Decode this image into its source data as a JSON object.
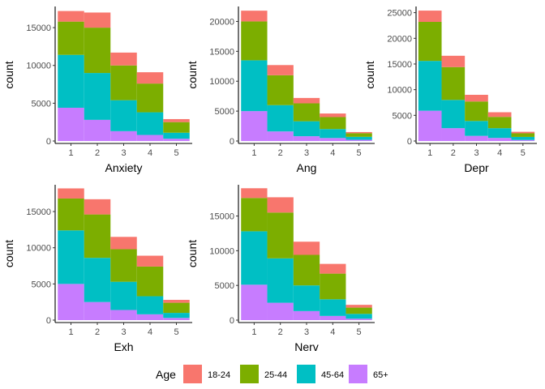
{
  "chart_data": {
    "type": "bar",
    "stacked": true,
    "categories": [
      1,
      2,
      3,
      4,
      5
    ],
    "ylabel": "count",
    "legend": {
      "title": "Age",
      "position": "bottom",
      "entries": [
        "18-24",
        "25-44",
        "45-64",
        "65+"
      ],
      "colors": [
        "#F8766D",
        "#7CAE00",
        "#00BFC4",
        "#C77CFF"
      ]
    },
    "facets": [
      {
        "xlabel": "Anxiety",
        "ylim": [
          0,
          17800
        ],
        "yticks": [
          0,
          5000,
          10000,
          15000
        ],
        "series": [
          {
            "name": "65+",
            "values": [
              4400,
              2800,
              1300,
              800,
              300
            ]
          },
          {
            "name": "45-64",
            "values": [
              7000,
              6200,
              4100,
              3000,
              800
            ]
          },
          {
            "name": "25-44",
            "values": [
              4400,
              6000,
              4600,
              3800,
              1400
            ]
          },
          {
            "name": "18-24",
            "values": [
              1400,
              2000,
              1700,
              1500,
              400
            ]
          }
        ]
      },
      {
        "xlabel": "Ang",
        "ylim": [
          0,
          22500
        ],
        "yticks": [
          0,
          5000,
          10000,
          15000,
          20000
        ],
        "series": [
          {
            "name": "65+",
            "values": [
              5000,
              1600,
              800,
              500,
              200
            ]
          },
          {
            "name": "45-64",
            "values": [
              8500,
              4400,
              2500,
              1500,
              500
            ]
          },
          {
            "name": "25-44",
            "values": [
              6500,
              5000,
              3000,
              2000,
              600
            ]
          },
          {
            "name": "18-24",
            "values": [
              1800,
              1700,
              900,
              600,
              200
            ]
          }
        ]
      },
      {
        "xlabel": "Depr",
        "ylim": [
          0,
          26200
        ],
        "yticks": [
          0,
          5000,
          10000,
          15000,
          20000,
          25000
        ],
        "series": [
          {
            "name": "65+",
            "values": [
              5900,
              2500,
              1000,
              600,
              200
            ]
          },
          {
            "name": "45-64",
            "values": [
              9700,
              5500,
              2900,
              1900,
              600
            ]
          },
          {
            "name": "25-44",
            "values": [
              7600,
              6400,
              3800,
              2200,
              700
            ]
          },
          {
            "name": "18-24",
            "values": [
              2200,
              2200,
              1300,
              900,
              300
            ]
          }
        ]
      },
      {
        "xlabel": "Exh",
        "ylim": [
          0,
          18700
        ],
        "yticks": [
          0,
          5000,
          10000,
          15000
        ],
        "series": [
          {
            "name": "65+",
            "values": [
              5000,
              2500,
              1400,
              800,
              300
            ]
          },
          {
            "name": "45-64",
            "values": [
              7400,
              6100,
              3900,
              2500,
              700
            ]
          },
          {
            "name": "25-44",
            "values": [
              4400,
              6000,
              4500,
              4100,
              1400
            ]
          },
          {
            "name": "18-24",
            "values": [
              1400,
              2100,
              1700,
              1500,
              400
            ]
          }
        ]
      },
      {
        "xlabel": "Nerv",
        "ylim": [
          0,
          19500
        ],
        "yticks": [
          0,
          5000,
          10000,
          15000
        ],
        "series": [
          {
            "name": "65+",
            "values": [
              5100,
              2500,
              1300,
              600,
              200
            ]
          },
          {
            "name": "45-64",
            "values": [
              7700,
              6400,
              3700,
              2400,
              700
            ]
          },
          {
            "name": "25-44",
            "values": [
              4800,
              6600,
              4400,
              3700,
              900
            ]
          },
          {
            "name": "18-24",
            "values": [
              1400,
              2200,
              1900,
              1400,
              400
            ]
          }
        ]
      }
    ]
  }
}
